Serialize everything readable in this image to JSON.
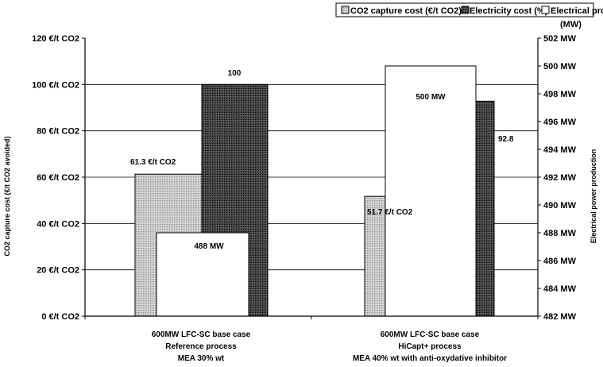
{
  "chart_data": {
    "type": "bar",
    "categories": [
      [
        "600MW LFC-SC base case",
        "Reference process",
        "MEA 30% wt"
      ],
      [
        "600MW LFC-SC base case",
        "HiCapt+ process",
        "MEA 40% wt with anti-oxydative inhibitor"
      ]
    ],
    "series": [
      {
        "name": "CO2 capture cost (€/t CO2)",
        "values": [
          61.3,
          51.7
        ],
        "labels": [
          "61.3 €/t CO2",
          "51.7 €/t CO2"
        ],
        "axis": "left",
        "color": "#d4d4d4",
        "pattern": "dotted-light"
      },
      {
        "name": "Electricity cost (%)",
        "values": [
          100,
          92.8
        ],
        "labels": [
          "100",
          "92.8"
        ],
        "axis": "left",
        "color": "#3a3a3a",
        "pattern": "dotted-dark"
      },
      {
        "name": "Electrical production",
        "values": [
          488,
          500
        ],
        "labels": [
          "488 MW",
          "500 MW"
        ],
        "axis": "right",
        "color": "#ffffff",
        "pattern": "none"
      }
    ],
    "legend_unit": "(MW)",
    "legend_position": "top",
    "y_left": {
      "label": "CO2 capture cost (€/t CO2 avoided)",
      "min": 0,
      "max": 120,
      "step": 20,
      "ticks": [
        "0 €/t CO2",
        "20 €/t CO2",
        "40 €/t CO2",
        "60 €/t CO2",
        "80 €/t CO2",
        "100 €/t CO2",
        "120 €/t CO2"
      ]
    },
    "y_right": {
      "label": "Electrical power production",
      "min": 482,
      "max": 502,
      "step": 2,
      "ticks": [
        "482 MW",
        "484 MW",
        "486 MW",
        "488 MW",
        "490 MW",
        "492 MW",
        "494 MW",
        "496 MW",
        "498 MW",
        "500 MW",
        "502 MW"
      ]
    },
    "grid": true
  }
}
